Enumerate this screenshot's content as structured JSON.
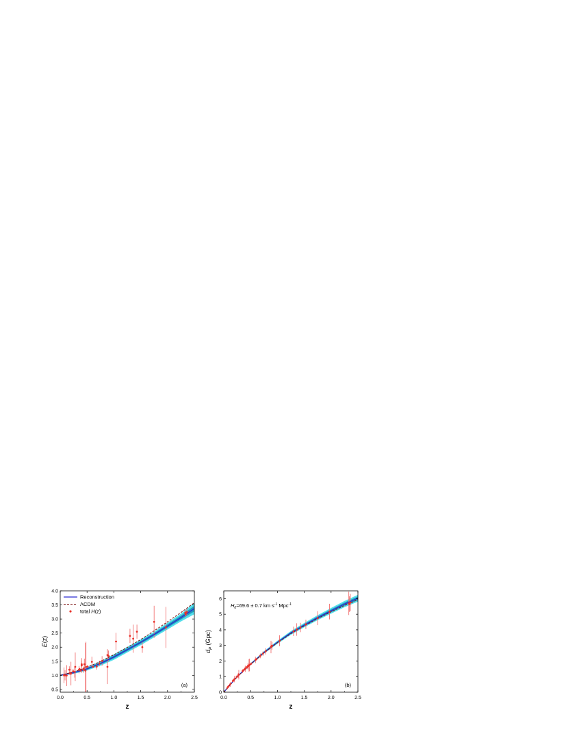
{
  "colors": {
    "reconstruction": "#2a2ad0",
    "lcdm": "#7a1010",
    "data_points": "#e8322a",
    "error_bars": "#f07070",
    "band_1sigma": "#1b8fb5",
    "band_2sigma": "#36d8e8",
    "axes": "#000000"
  },
  "chart_data": [
    {
      "type": "scatter",
      "panel_label": "(a)",
      "xlabel": "z",
      "ylabel": "E(z)",
      "xlim": [
        0.0,
        2.5
      ],
      "ylim": [
        0.4,
        4.0
      ],
      "xticks": [
        "0.0",
        "0.5",
        "1.0",
        "1.5",
        "2.0",
        "2.5"
      ],
      "yticks": [
        "0.5",
        "1.0",
        "1.5",
        "2.0",
        "2.5",
        "3.0",
        "3.5",
        "4.0"
      ],
      "legend_position": "top-left",
      "legend": [
        {
          "label": "Reconstruction",
          "style": "solid-line"
        },
        {
          "label": "ΛCDM",
          "style": "dashed-line"
        },
        {
          "label_prefix": "total ",
          "label_italic": "H",
          "label_suffix": "(z)",
          "style": "point"
        }
      ],
      "series": [
        {
          "name": "Reconstruction",
          "kind": "line",
          "x": [
            0,
            0.25,
            0.5,
            0.75,
            1.0,
            1.25,
            1.5,
            1.75,
            2.0,
            2.25,
            2.5
          ],
          "y": [
            1.0,
            1.09,
            1.23,
            1.42,
            1.65,
            1.91,
            2.17,
            2.45,
            2.75,
            3.05,
            3.37
          ]
        },
        {
          "name": "1σ band",
          "kind": "band",
          "x": [
            0,
            0.25,
            0.5,
            0.75,
            1.0,
            1.25,
            1.5,
            1.75,
            2.0,
            2.25,
            2.5
          ],
          "lower": [
            0.99,
            1.07,
            1.2,
            1.38,
            1.6,
            1.86,
            2.12,
            2.4,
            2.69,
            2.98,
            3.27
          ],
          "upper": [
            1.01,
            1.11,
            1.26,
            1.46,
            1.7,
            1.96,
            2.22,
            2.5,
            2.81,
            3.12,
            3.47
          ]
        },
        {
          "name": "2σ band",
          "kind": "band",
          "x": [
            0,
            0.25,
            0.5,
            0.75,
            1.0,
            1.25,
            1.5,
            1.75,
            2.0,
            2.25,
            2.5
          ],
          "lower": [
            0.98,
            1.05,
            1.17,
            1.34,
            1.55,
            1.81,
            2.07,
            2.35,
            2.63,
            2.91,
            3.17
          ],
          "upper": [
            1.02,
            1.13,
            1.29,
            1.5,
            1.75,
            2.01,
            2.27,
            2.55,
            2.87,
            3.19,
            3.57
          ]
        },
        {
          "name": "ΛCDM",
          "kind": "line",
          "x": [
            0,
            0.25,
            0.5,
            0.75,
            1.0,
            1.25,
            1.5,
            1.75,
            2.0,
            2.25,
            2.5
          ],
          "y": [
            1.0,
            1.12,
            1.29,
            1.49,
            1.73,
            1.99,
            2.27,
            2.58,
            2.9,
            3.23,
            3.58
          ]
        },
        {
          "name": "total H(z)",
          "kind": "points",
          "points": [
            {
              "x": 0.07,
              "y": 1.0,
              "err": 0.28
            },
            {
              "x": 0.09,
              "y": 1.0,
              "err": 0.18
            },
            {
              "x": 0.12,
              "y": 0.99,
              "err": 0.37
            },
            {
              "x": 0.17,
              "y": 1.2,
              "err": 0.12
            },
            {
              "x": 0.18,
              "y": 1.07,
              "err": 0.06
            },
            {
              "x": 0.2,
              "y": 1.06,
              "err": 0.42
            },
            {
              "x": 0.24,
              "y": 1.14,
              "err": 0.09
            },
            {
              "x": 0.27,
              "y": 1.12,
              "err": 0.2
            },
            {
              "x": 0.28,
              "y": 1.3,
              "err": 0.51
            },
            {
              "x": 0.35,
              "y": 1.2,
              "err": 0.13
            },
            {
              "x": 0.36,
              "y": 1.22,
              "err": 0.04
            },
            {
              "x": 0.38,
              "y": 1.17,
              "err": 0.04
            },
            {
              "x": 0.4,
              "y": 1.35,
              "err": 0.26
            },
            {
              "x": 0.4,
              "y": 1.39,
              "err": 0.12
            },
            {
              "x": 0.43,
              "y": 1.22,
              "err": 0.06
            },
            {
              "x": 0.44,
              "y": 1.2,
              "err": 0.11
            },
            {
              "x": 0.45,
              "y": 1.39,
              "err": 0.2
            },
            {
              "x": 0.47,
              "y": 1.17,
              "err": 0.98
            },
            {
              "x": 0.48,
              "y": 1.3,
              "err": 0.89
            },
            {
              "x": 0.51,
              "y": 1.31,
              "err": 0.05
            },
            {
              "x": 0.59,
              "y": 1.48,
              "err": 0.18
            },
            {
              "x": 0.61,
              "y": 1.3,
              "err": 0.04
            },
            {
              "x": 0.68,
              "y": 1.31,
              "err": 0.11
            },
            {
              "x": 0.73,
              "y": 1.42,
              "err": 0.1
            },
            {
              "x": 0.78,
              "y": 1.51,
              "err": 0.17
            },
            {
              "x": 0.88,
              "y": 1.3,
              "err": 0.61
            },
            {
              "x": 0.88,
              "y": 1.72,
              "err": 0.21
            },
            {
              "x": 0.9,
              "y": 1.69,
              "err": 0.19
            },
            {
              "x": 1.04,
              "y": 2.2,
              "err": 0.31
            },
            {
              "x": 1.3,
              "y": 2.4,
              "err": 0.25
            },
            {
              "x": 1.36,
              "y": 2.3,
              "err": 0.5
            },
            {
              "x": 1.43,
              "y": 2.55,
              "err": 0.25
            },
            {
              "x": 1.53,
              "y": 2.0,
              "err": 0.2
            },
            {
              "x": 1.75,
              "y": 2.9,
              "err": 0.57
            },
            {
              "x": 1.97,
              "y": 2.7,
              "err": 0.73
            },
            {
              "x": 2.33,
              "y": 3.22,
              "err": 0.1
            },
            {
              "x": 2.34,
              "y": 3.18,
              "err": 0.1
            },
            {
              "x": 2.36,
              "y": 3.25,
              "err": 0.12
            }
          ]
        }
      ]
    },
    {
      "type": "scatter",
      "panel_label": "(b)",
      "xlabel": "z",
      "ylabel_main": "d",
      "ylabel_sub": "P",
      "ylabel_unit": " (Gpc)",
      "xlim": [
        0.0,
        2.5
      ],
      "ylim": [
        0,
        6.5
      ],
      "xticks": [
        "0.0",
        "0.5",
        "1.0",
        "1.5",
        "2.0",
        "2.5"
      ],
      "yticks": [
        "0",
        "1",
        "2",
        "3",
        "4",
        "5",
        "6"
      ],
      "annotation": {
        "h_symbol": "H",
        "h_sub": "0",
        "value": "=69.6 ± 0.7 km s",
        "exp1": "-1",
        "unit2": " Mpc",
        "exp2": "-1"
      },
      "series": [
        {
          "name": "Reconstruction",
          "kind": "line",
          "x": [
            0,
            0.25,
            0.5,
            0.75,
            1.0,
            1.25,
            1.5,
            1.75,
            2.0,
            2.25,
            2.5
          ],
          "y": [
            0,
            1.0,
            1.8,
            2.55,
            3.2,
            3.8,
            4.3,
            4.78,
            5.22,
            5.65,
            6.03
          ]
        },
        {
          "name": "1σ band",
          "kind": "band",
          "x": [
            0,
            0.25,
            0.5,
            0.75,
            1.0,
            1.25,
            1.5,
            1.75,
            2.0,
            2.25,
            2.5
          ],
          "lower": [
            0,
            0.98,
            1.77,
            2.51,
            3.15,
            3.74,
            4.23,
            4.7,
            5.13,
            5.55,
            5.92
          ],
          "upper": [
            0,
            1.02,
            1.83,
            2.59,
            3.25,
            3.86,
            4.37,
            4.86,
            5.31,
            5.75,
            6.14
          ]
        },
        {
          "name": "2σ band",
          "kind": "band",
          "x": [
            0,
            0.25,
            0.5,
            0.75,
            1.0,
            1.25,
            1.5,
            1.75,
            2.0,
            2.25,
            2.5
          ],
          "lower": [
            0,
            0.96,
            1.74,
            2.47,
            3.1,
            3.68,
            4.16,
            4.62,
            5.04,
            5.45,
            5.81
          ],
          "upper": [
            0,
            1.04,
            1.86,
            2.63,
            3.3,
            3.92,
            4.44,
            4.94,
            5.4,
            5.85,
            6.25
          ]
        },
        {
          "name": "ΛCDM",
          "kind": "line",
          "x": [
            0,
            0.25,
            0.5,
            0.75,
            1.0,
            1.25,
            1.5,
            1.75,
            2.0,
            2.25,
            2.5
          ],
          "y": [
            0,
            0.98,
            1.78,
            2.52,
            3.17,
            3.75,
            4.25,
            4.72,
            5.15,
            5.56,
            5.93
          ]
        },
        {
          "name": "total H(z)",
          "kind": "points",
          "points": [
            {
              "x": 0.07,
              "y": 0.3,
              "err": 0.1
            },
            {
              "x": 0.09,
              "y": 0.38,
              "err": 0.1
            },
            {
              "x": 0.12,
              "y": 0.5,
              "err": 0.15
            },
            {
              "x": 0.17,
              "y": 0.72,
              "err": 0.1
            },
            {
              "x": 0.18,
              "y": 0.76,
              "err": 0.06
            },
            {
              "x": 0.2,
              "y": 0.84,
              "err": 0.2
            },
            {
              "x": 0.24,
              "y": 0.97,
              "err": 0.1
            },
            {
              "x": 0.27,
              "y": 1.08,
              "err": 0.15
            },
            {
              "x": 0.28,
              "y": 1.12,
              "err": 0.3
            },
            {
              "x": 0.35,
              "y": 1.35,
              "err": 0.12
            },
            {
              "x": 0.36,
              "y": 1.38,
              "err": 0.06
            },
            {
              "x": 0.38,
              "y": 1.45,
              "err": 0.06
            },
            {
              "x": 0.4,
              "y": 1.5,
              "err": 0.2
            },
            {
              "x": 0.4,
              "y": 1.52,
              "err": 0.12
            },
            {
              "x": 0.43,
              "y": 1.6,
              "err": 0.08
            },
            {
              "x": 0.44,
              "y": 1.63,
              "err": 0.12
            },
            {
              "x": 0.45,
              "y": 1.66,
              "err": 0.2
            },
            {
              "x": 0.47,
              "y": 1.72,
              "err": 0.4
            },
            {
              "x": 0.48,
              "y": 1.75,
              "err": 0.4
            },
            {
              "x": 0.51,
              "y": 1.83,
              "err": 0.08
            },
            {
              "x": 0.59,
              "y": 2.07,
              "err": 0.2
            },
            {
              "x": 0.61,
              "y": 2.12,
              "err": 0.08
            },
            {
              "x": 0.68,
              "y": 2.33,
              "err": 0.15
            },
            {
              "x": 0.73,
              "y": 2.47,
              "err": 0.15
            },
            {
              "x": 0.78,
              "y": 2.62,
              "err": 0.2
            },
            {
              "x": 0.88,
              "y": 2.9,
              "err": 0.4
            },
            {
              "x": 0.88,
              "y": 2.92,
              "err": 0.2
            },
            {
              "x": 0.9,
              "y": 2.98,
              "err": 0.25
            },
            {
              "x": 1.04,
              "y": 3.3,
              "err": 0.35
            },
            {
              "x": 1.3,
              "y": 3.9,
              "err": 0.3
            },
            {
              "x": 1.36,
              "y": 4.02,
              "err": 0.4
            },
            {
              "x": 1.43,
              "y": 4.15,
              "err": 0.3
            },
            {
              "x": 1.53,
              "y": 4.35,
              "err": 0.3
            },
            {
              "x": 1.75,
              "y": 4.75,
              "err": 0.45
            },
            {
              "x": 1.97,
              "y": 5.17,
              "err": 0.5
            },
            {
              "x": 2.33,
              "y": 5.7,
              "err": 0.75
            },
            {
              "x": 2.34,
              "y": 5.65,
              "err": 0.5
            },
            {
              "x": 2.36,
              "y": 5.75,
              "err": 0.55
            }
          ]
        }
      ]
    }
  ]
}
